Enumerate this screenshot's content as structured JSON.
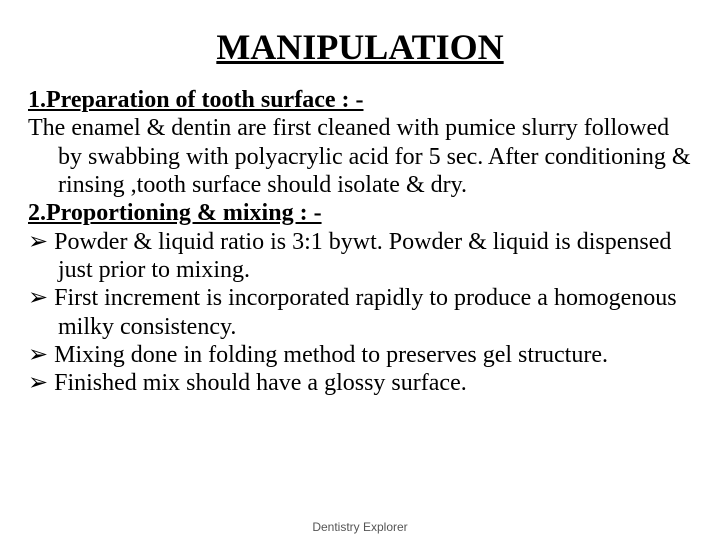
{
  "title": "MANIPULATION",
  "section1": {
    "heading": "1.Preparation of tooth surface : -",
    "body": "The enamel & dentin are first cleaned with pumice slurry followed by swabbing with polyacrylic acid for 5 sec. After conditioning & rinsing ,tooth surface should isolate & dry."
  },
  "section2": {
    "heading": "2.Proportioning & mixing : -",
    "bullets": [
      " Powder & liquid ratio is 3:1 bywt. Powder & liquid is dispensed just prior to mixing.",
      "First increment is incorporated rapidly to produce  a homogenous milky consistency.",
      "Mixing done in folding method to preserves gel structure.",
      "Finished mix should have a glossy surface."
    ]
  },
  "bullet_glyph": "➢",
  "footer": "Dentistry Explorer",
  "colors": {
    "background": "#ffffff",
    "text": "#000000",
    "footer": "#555555"
  },
  "typography": {
    "title_fontsize": 36,
    "body_fontsize": 24,
    "footer_fontsize": 12,
    "font_family": "Times New Roman"
  }
}
